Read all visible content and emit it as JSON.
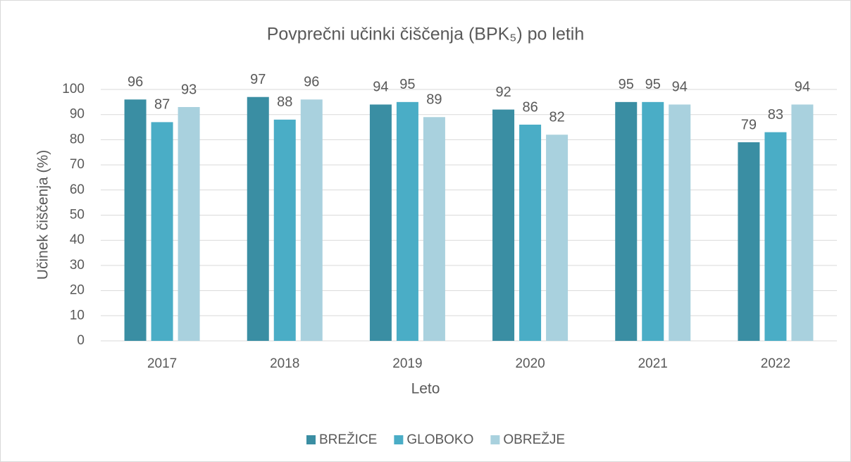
{
  "chart_data": {
    "type": "bar",
    "title": "Povprečni učinki čiščenja (BPK₅) po letih",
    "x_label": "Leto",
    "y_label": "Učinek čiščenja (%)",
    "categories": [
      "2017",
      "2018",
      "2019",
      "2020",
      "2021",
      "2022"
    ],
    "series": [
      {
        "name": "BREŽICE",
        "color": "#3a8ea3",
        "values": [
          96,
          97,
          94,
          92,
          95,
          79
        ]
      },
      {
        "name": "GLOBOKO",
        "color": "#4aadc6",
        "values": [
          87,
          88,
          95,
          86,
          95,
          83
        ]
      },
      {
        "name": "OBREŽJE",
        "color": "#a9d1de",
        "values": [
          93,
          96,
          89,
          82,
          94,
          94
        ]
      }
    ],
    "ylim": [
      0,
      100
    ],
    "yticks": [
      0,
      10,
      20,
      30,
      40,
      50,
      60,
      70,
      80,
      90,
      100
    ],
    "grid": true,
    "legend": "bottom"
  }
}
